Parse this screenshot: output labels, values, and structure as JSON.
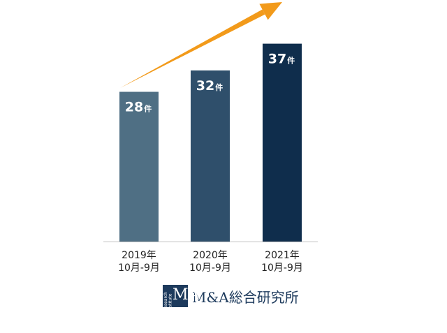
{
  "chart_data": {
    "type": "bar",
    "categories": [
      [
        "2019年",
        "10月-9月"
      ],
      [
        "2020年",
        "10月-9月"
      ],
      [
        "2021年",
        "10月-9月"
      ]
    ],
    "values": [
      28,
      32,
      37
    ],
    "unit": "件",
    "ylim": [
      0,
      40
    ],
    "colors": [
      "#4f6f84",
      "#2f4f6b",
      "#0f2d4c"
    ],
    "arrow_color": "#f29a1a",
    "grid": false,
    "title": "",
    "xlabel": "",
    "ylabel": ""
  },
  "logo": {
    "mark_letters": "MA",
    "mark_small": "Research Institute",
    "text": "M&A総合研究所",
    "color": "#1d3a5c"
  }
}
